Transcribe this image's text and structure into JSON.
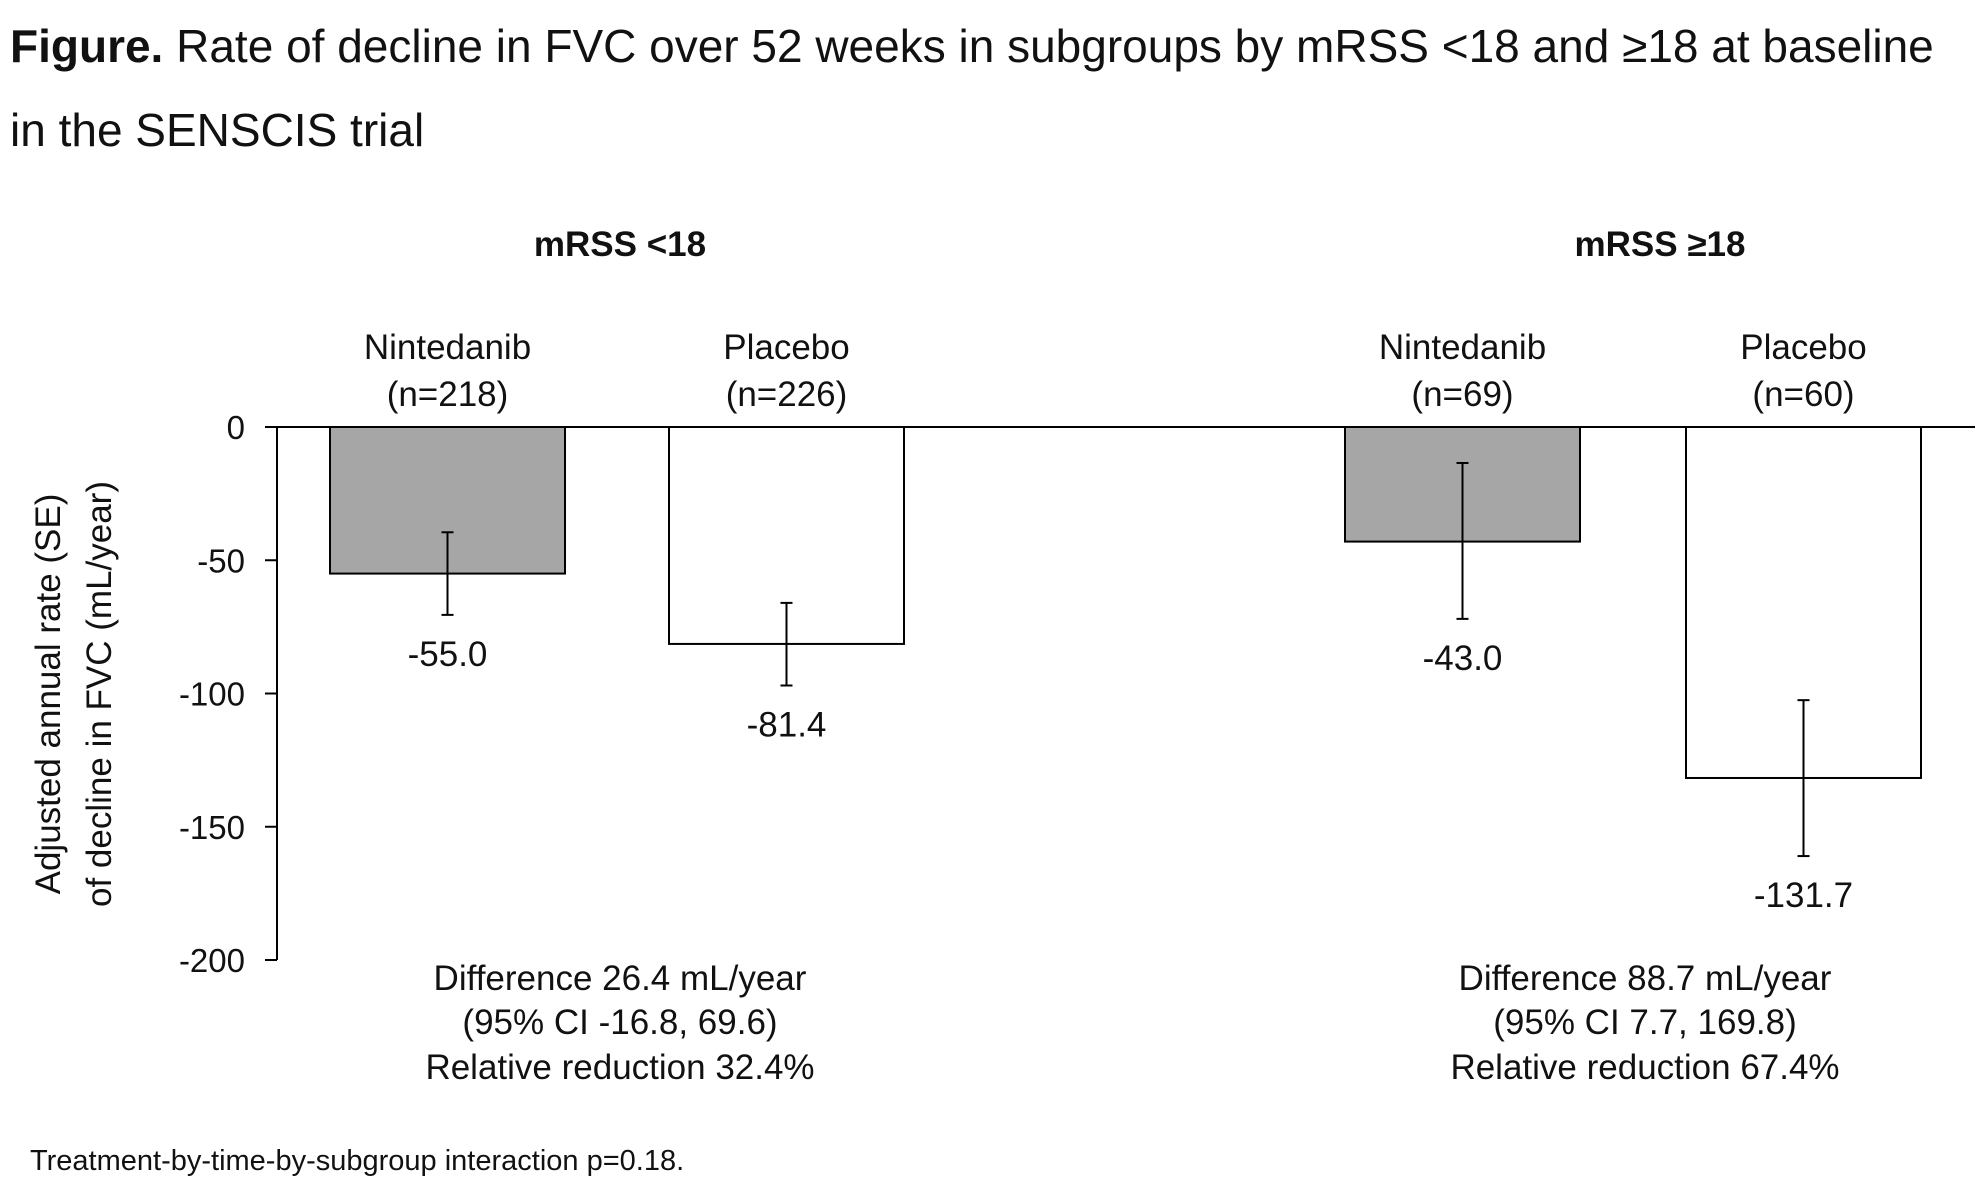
{
  "figure": {
    "title_prefix": "Figure.",
    "title_text": " Rate of decline in FVC over 52 weeks in subgroups by mRSS <18 and ≥18 at baseline in the SENSCIS trial",
    "footnote": "Treatment-by-time-by-subgroup interaction p=0.18."
  },
  "chart_data": {
    "type": "bar",
    "ylabel": [
      "Adjusted annual rate (SE)",
      "of decline in FVC (mL/year)"
    ],
    "ylim": [
      -200,
      0
    ],
    "yticks": [
      0,
      -50,
      -100,
      -150,
      -200
    ],
    "grid": false,
    "colors": {
      "Nintedanib": "#a6a6a6",
      "Placebo": "#ffffff",
      "outline": "#000000"
    },
    "groups": [
      {
        "title": "mRSS <18",
        "bars": [
          {
            "treatment": "Nintedanib",
            "n": "(n=218)",
            "value": -55.0,
            "label": "-55.0",
            "err_low": -70.5,
            "err_high": -39.5
          },
          {
            "treatment": "Placebo",
            "n": "(n=226)",
            "value": -81.4,
            "label": "-81.4",
            "err_low": -97.0,
            "err_high": -66.0
          }
        ],
        "annotation": [
          "Difference 26.4 mL/year",
          "(95% CI -16.8, 69.6)",
          "Relative reduction 32.4%"
        ]
      },
      {
        "title": "mRSS ≥18",
        "bars": [
          {
            "treatment": "Nintedanib",
            "n": "(n=69)",
            "value": -43.0,
            "label": "-43.0",
            "err_low": -72.0,
            "err_high": -13.5
          },
          {
            "treatment": "Placebo",
            "n": "(n=60)",
            "value": -131.7,
            "label": "-131.7",
            "err_low": -161.0,
            "err_high": -102.5
          }
        ],
        "annotation": [
          "Difference 88.7 mL/year",
          "(95% CI 7.7, 169.8)",
          "Relative reduction 67.4%"
        ]
      }
    ]
  }
}
